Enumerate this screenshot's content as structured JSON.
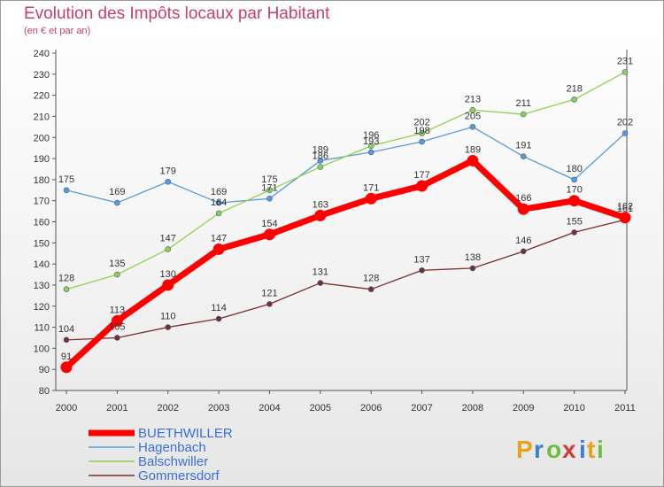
{
  "title": "Evolution des Impôts locaux par Habitant",
  "subtitle": "(en € et par an)",
  "logo": {
    "letters": [
      "P",
      "r",
      "o",
      "x",
      "i",
      "t",
      "i"
    ],
    "colors": [
      "#e8a21a",
      "#3b7fd1",
      "#6cbf3a",
      "#d23b3b",
      "#3b7fd1",
      "#e8a21a",
      "#6cbf3a"
    ]
  },
  "chart_data": {
    "type": "line",
    "title": "Evolution des Impôts locaux par Habitant",
    "subtitle": "(en € et par an)",
    "xlabel": "",
    "ylabel": "",
    "x": [
      2000,
      2001,
      2002,
      2003,
      2004,
      2005,
      2006,
      2007,
      2008,
      2009,
      2010,
      2011
    ],
    "ylim": [
      80,
      240
    ],
    "ytick_step": 10,
    "grid": false,
    "legend_placement": "bottom-left",
    "series": [
      {
        "name": "BUETHWILLER",
        "color": "#ff0000",
        "values": [
          91,
          113,
          130,
          147,
          154,
          163,
          171,
          177,
          189,
          166,
          170,
          162
        ]
      },
      {
        "name": "Hagenbach",
        "color": "#5b9bd5",
        "values": [
          175,
          169,
          179,
          169,
          171,
          189,
          193,
          198,
          205,
          191,
          180,
          202
        ]
      },
      {
        "name": "Balschwiller",
        "color": "#92d050",
        "values": [
          128,
          135,
          147,
          164,
          175,
          186,
          196,
          202,
          213,
          211,
          218,
          231
        ]
      },
      {
        "name": "Gommersdorf",
        "color": "#7b2e2e",
        "values": [
          104,
          105,
          110,
          114,
          121,
          131,
          128,
          137,
          138,
          146,
          155,
          161
        ]
      }
    ]
  }
}
